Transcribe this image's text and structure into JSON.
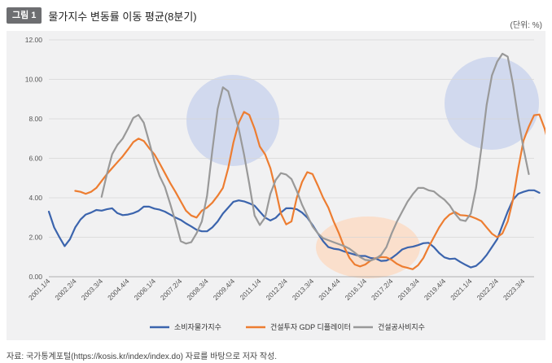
{
  "figure": {
    "badge": "그림 1",
    "title": "물가지수 변동률 이동 평균(8분기)",
    "unit": "(단위: %)",
    "source": "자료: 국가통계포털(https://kosis.kr/index/index.do) 자료를 바탕으로 저자 작성."
  },
  "chart_data": {
    "type": "line",
    "title": "물가지수 변동률 이동 평균(8분기)",
    "xlabel": "",
    "ylabel": "",
    "ylim": [
      0,
      12
    ],
    "yticks": [
      "0.00",
      "2.00",
      "4.00",
      "6.00",
      "8.00",
      "10.00",
      "12.00"
    ],
    "grid": true,
    "legend_position": "bottom",
    "x_tick_labels": [
      "2001.1/4",
      "2002.2/4",
      "2003.3/4",
      "2004.4/4",
      "2006.1/4",
      "2007.2/4",
      "2008.3/4",
      "2009.4/4",
      "2011.1/4",
      "2012.2/4",
      "2013.3/4",
      "2014.4/4",
      "2016.1/4",
      "2017.2/4",
      "2018.3/4",
      "2019.4/4",
      "2021.1/4",
      "2022.2/4",
      "2023.3/4"
    ],
    "x_start": "2001.1/4",
    "x_end": "2024.1/4",
    "x_tick_step_quarters": 5,
    "series": [
      {
        "name": "소비자물가지수",
        "color": "#3b64ad",
        "x_offset_quarters": 0,
        "values": [
          3.3,
          2.5,
          2.0,
          1.55,
          1.9,
          2.5,
          2.9,
          3.15,
          3.25,
          3.38,
          3.35,
          3.42,
          3.47,
          3.22,
          3.12,
          3.15,
          3.22,
          3.33,
          3.55,
          3.55,
          3.45,
          3.4,
          3.3,
          3.15,
          3.0,
          2.88,
          2.7,
          2.55,
          2.38,
          2.3,
          2.3,
          2.5,
          2.8,
          3.2,
          3.5,
          3.8,
          3.87,
          3.82,
          3.72,
          3.6,
          3.3,
          3.0,
          2.85,
          2.98,
          3.25,
          3.47,
          3.47,
          3.42,
          3.25,
          3.0,
          2.62,
          2.2,
          1.8,
          1.5,
          1.42,
          1.38,
          1.28,
          1.2,
          1.12,
          1.05,
          1.05,
          0.95,
          0.92,
          0.8,
          0.82,
          0.95,
          1.15,
          1.38,
          1.48,
          1.52,
          1.6,
          1.7,
          1.72,
          1.5,
          1.2,
          0.98,
          0.9,
          0.92,
          0.75,
          0.6,
          0.47,
          0.55,
          0.78,
          1.1,
          1.5,
          1.9,
          2.6,
          3.3,
          3.9,
          4.2,
          4.3,
          4.38,
          4.38,
          4.25
        ]
      },
      {
        "name": "건설투자 GDP 디플레이터",
        "color": "#ed7d31",
        "x_offset_quarters": 5,
        "values": [
          4.35,
          4.3,
          4.2,
          4.3,
          4.5,
          4.85,
          5.2,
          5.5,
          5.8,
          6.1,
          6.45,
          6.82,
          7.0,
          6.88,
          6.52,
          6.2,
          5.75,
          5.25,
          4.75,
          4.3,
          3.82,
          3.35,
          3.1,
          3.0,
          3.35,
          3.5,
          3.75,
          4.1,
          4.5,
          5.5,
          6.8,
          7.8,
          8.35,
          8.2,
          7.5,
          6.6,
          6.2,
          5.5,
          4.4,
          3.2,
          2.65,
          2.8,
          4.0,
          4.8,
          5.3,
          5.2,
          4.62,
          4.0,
          3.5,
          2.8,
          2.2,
          1.5,
          0.95,
          0.62,
          0.52,
          0.62,
          0.82,
          0.95,
          1.0,
          0.98,
          0.85,
          0.65,
          0.52,
          0.45,
          0.38,
          0.58,
          0.95,
          1.5,
          2.0,
          2.5,
          2.9,
          3.15,
          3.28,
          3.12,
          3.1,
          3.05,
          2.95,
          2.82,
          2.5,
          2.18,
          2.0,
          2.2,
          2.8,
          3.9,
          5.5,
          6.9,
          7.6,
          8.18,
          8.22,
          7.5,
          6.5,
          4.5
        ]
      },
      {
        "name": "건설공사비지수",
        "color": "#999999",
        "x_offset_quarters": 10,
        "values": [
          4.05,
          5.2,
          6.2,
          6.68,
          7.0,
          7.5,
          8.05,
          8.2,
          7.8,
          6.85,
          5.85,
          5.1,
          4.55,
          3.7,
          2.8,
          1.8,
          1.68,
          1.75,
          2.2,
          2.8,
          4.1,
          6.4,
          8.5,
          9.6,
          9.4,
          8.45,
          7.5,
          6.2,
          4.7,
          3.1,
          2.62,
          3.0,
          4.2,
          4.9,
          5.25,
          5.18,
          4.95,
          4.35,
          3.65,
          3.1,
          2.55,
          2.2,
          1.95,
          1.85,
          1.75,
          1.65,
          1.55,
          1.42,
          1.22,
          1.0,
          0.85,
          0.82,
          0.92,
          1.1,
          1.5,
          2.2,
          2.8,
          3.3,
          3.8,
          4.18,
          4.5,
          4.5,
          4.38,
          4.32,
          4.1,
          3.9,
          3.62,
          3.2,
          2.88,
          2.82,
          3.2,
          4.5,
          6.5,
          8.7,
          10.2,
          10.9,
          11.3,
          11.15,
          9.75,
          8.0,
          6.5,
          5.2
        ]
      }
    ]
  }
}
